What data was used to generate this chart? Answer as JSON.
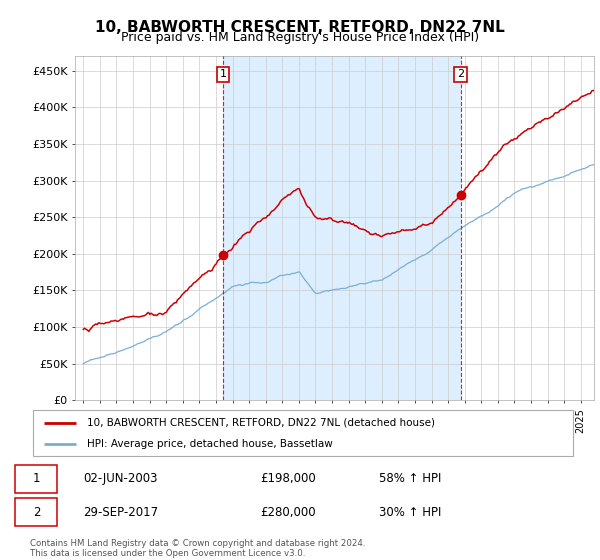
{
  "title": "10, BABWORTH CRESCENT, RETFORD, DN22 7NL",
  "subtitle": "Price paid vs. HM Land Registry's House Price Index (HPI)",
  "ylim": [
    0,
    470000
  ],
  "yticks": [
    0,
    50000,
    100000,
    150000,
    200000,
    250000,
    300000,
    350000,
    400000,
    450000
  ],
  "ytick_labels": [
    "£0",
    "£50K",
    "£100K",
    "£150K",
    "£200K",
    "£250K",
    "£300K",
    "£350K",
    "£400K",
    "£450K"
  ],
  "sale1": {
    "date_num": 2003.42,
    "price": 198000,
    "label": "1"
  },
  "sale2": {
    "date_num": 2017.75,
    "price": 280000,
    "label": "2"
  },
  "red_color": "#cc0000",
  "blue_color": "#7aaed4",
  "shade_color": "#ddeeff",
  "annotation_box_color": "#cc0000",
  "legend_line1": "10, BABWORTH CRESCENT, RETFORD, DN22 7NL (detached house)",
  "legend_line2": "HPI: Average price, detached house, Bassetlaw",
  "table_row1": [
    "1",
    "02-JUN-2003",
    "£198,000",
    "58% ↑ HPI"
  ],
  "table_row2": [
    "2",
    "29-SEP-2017",
    "£280,000",
    "30% ↑ HPI"
  ],
  "footer": "Contains HM Land Registry data © Crown copyright and database right 2024.\nThis data is licensed under the Open Government Licence v3.0.",
  "title_fontsize": 11,
  "subtitle_fontsize": 9,
  "axis_fontsize": 8,
  "background_color": "#ffffff",
  "grid_color": "#cccccc"
}
